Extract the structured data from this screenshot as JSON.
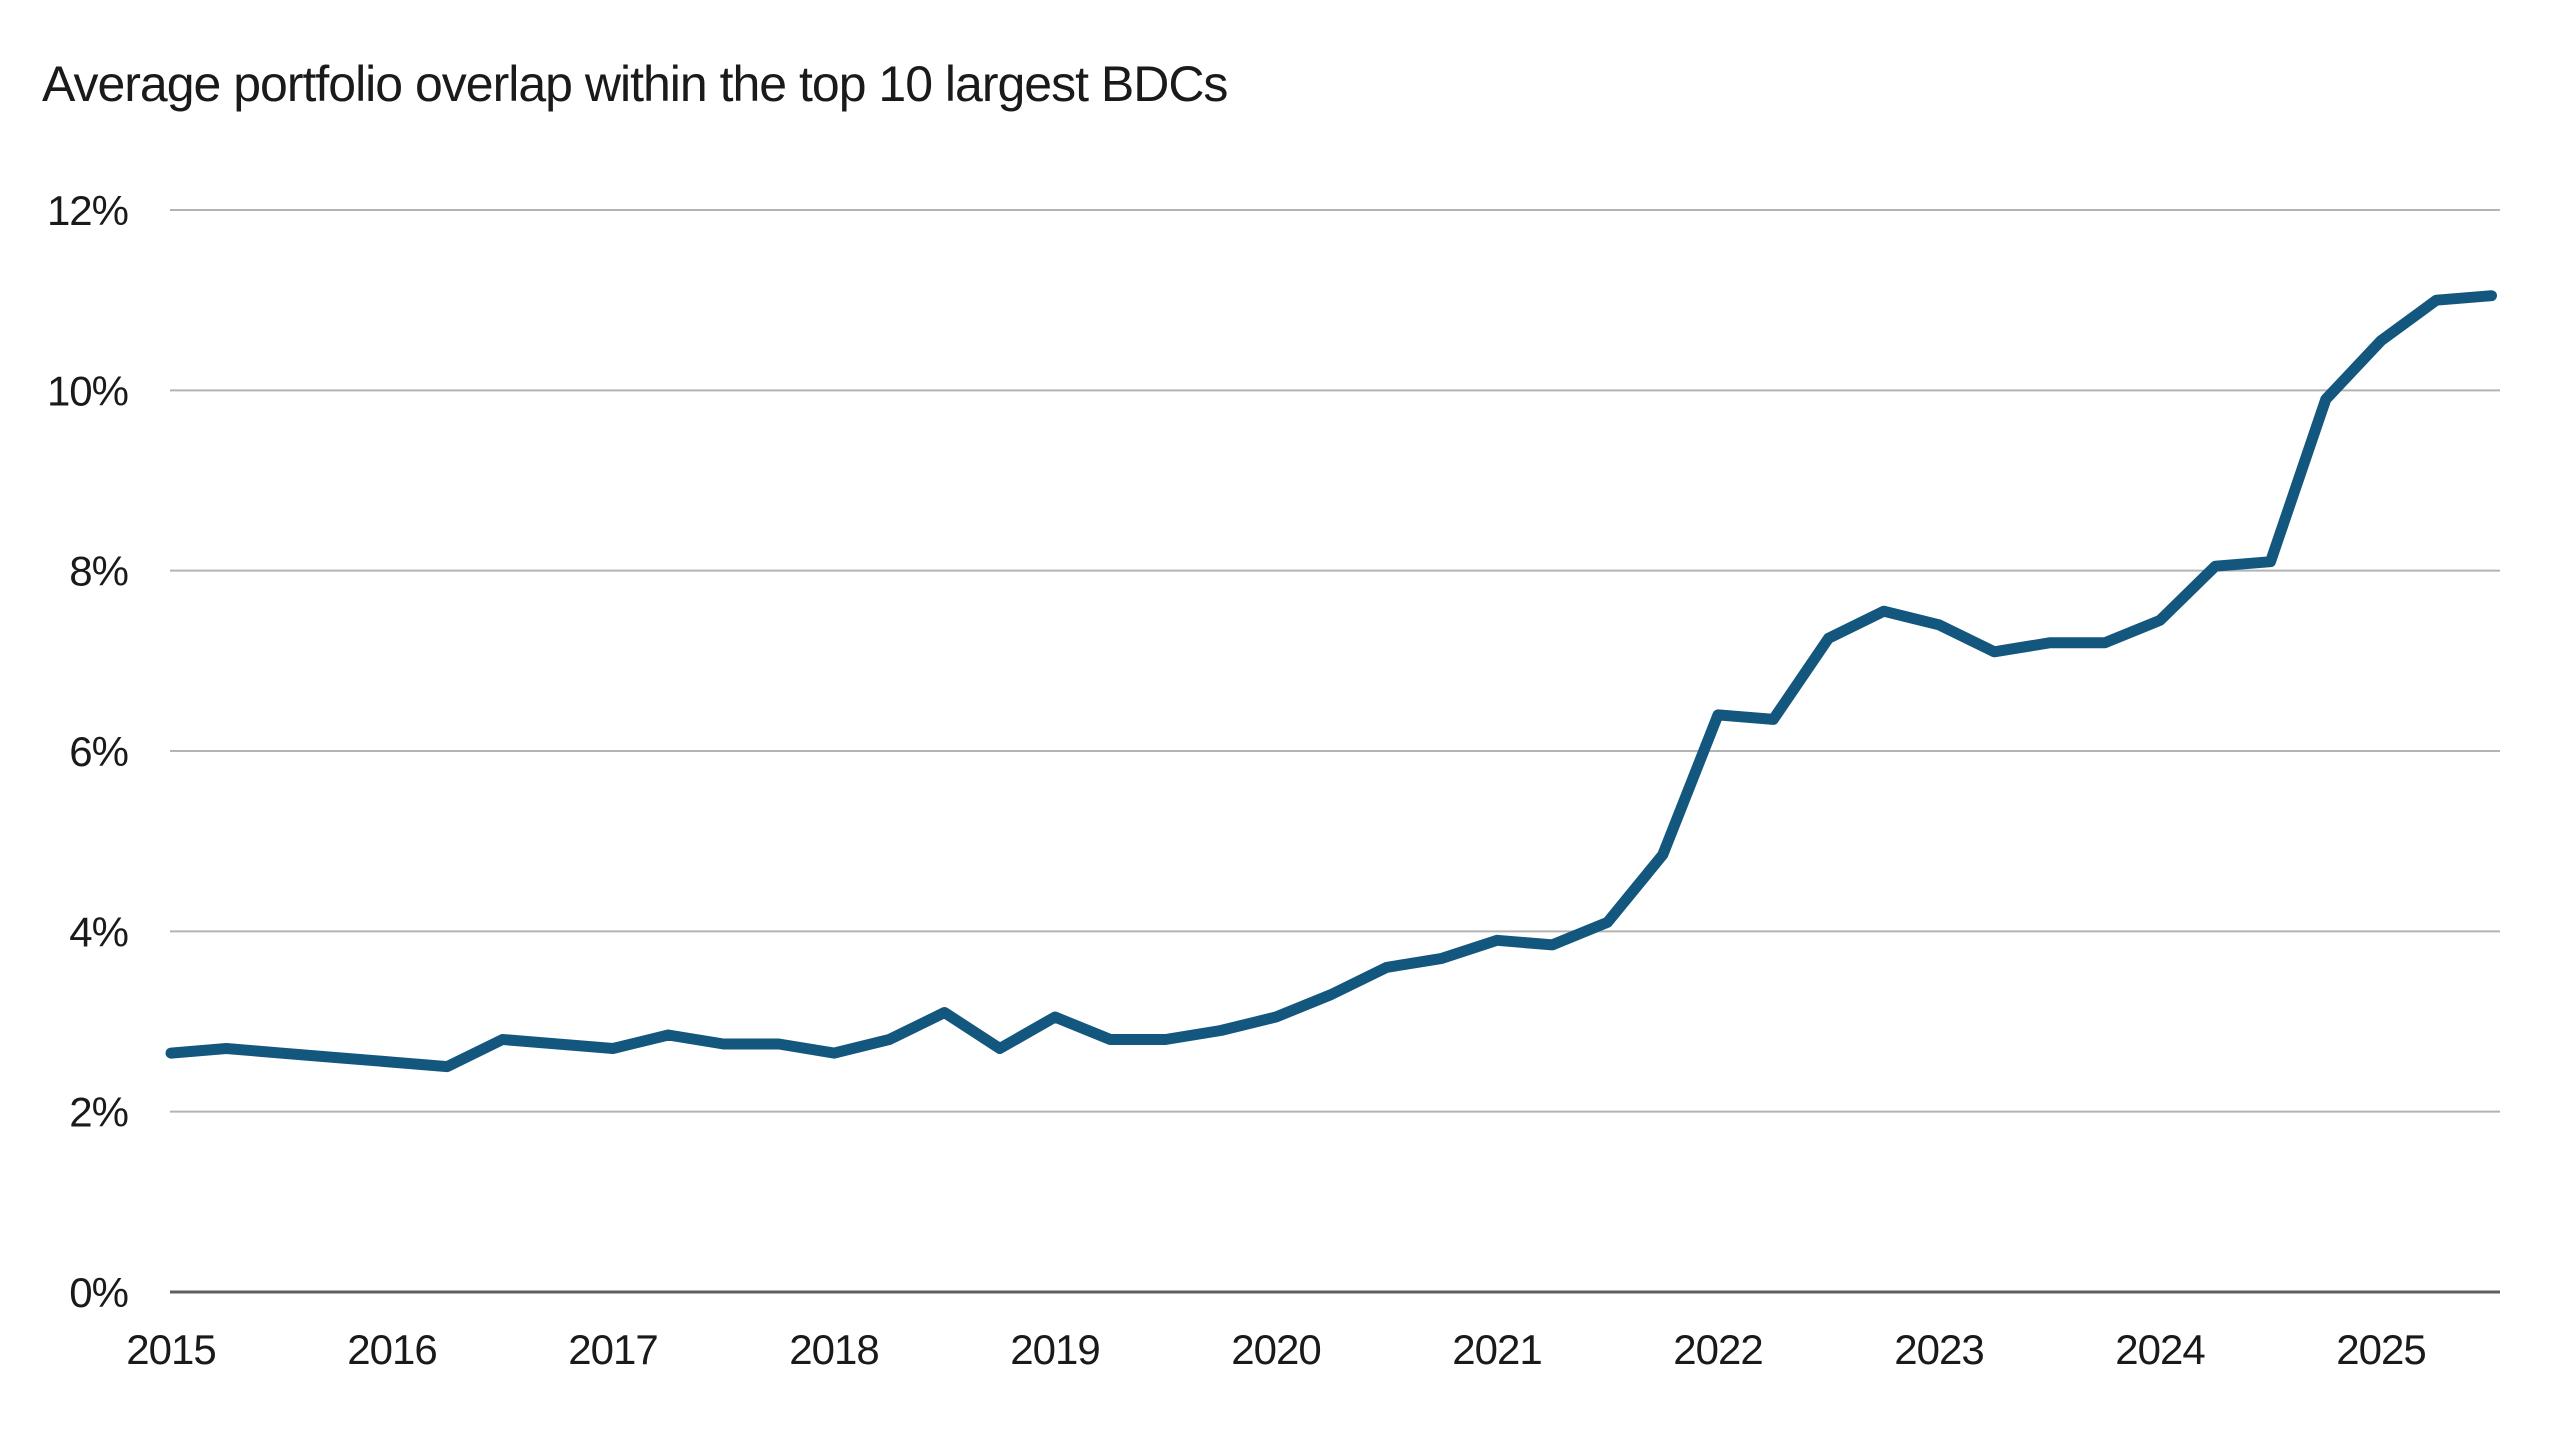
{
  "chart_data": {
    "type": "line",
    "title": "Average portfolio overlap within the top 10 largest BDCs",
    "xlabel": "",
    "ylabel": "",
    "ylim": [
      0,
      12
    ],
    "y_ticks": [
      0,
      2,
      4,
      6,
      8,
      10,
      12
    ],
    "y_tick_labels": [
      "0%",
      "2%",
      "4%",
      "6%",
      "8%",
      "10%",
      "12%"
    ],
    "x_tick_labels": [
      "2015",
      "2016",
      "2017",
      "2018",
      "2019",
      "2020",
      "2021",
      "2022",
      "2023",
      "2024",
      "2025"
    ],
    "grid": "horizontal-only",
    "legend_position": "none",
    "colors": {
      "line": "#14577e",
      "gridline": "#b3b3b3",
      "axis": "#5f5f5f",
      "text": "#1a1a1a",
      "background": "#ffffff"
    },
    "series": [
      {
        "name": "Average portfolio overlap within the top 10 largest BDCs",
        "frequency": "quarterly",
        "periods": [
          "2015 Q1",
          "2015 Q2",
          "2015 Q3",
          "2015 Q4",
          "2016 Q1",
          "2016 Q2",
          "2016 Q3",
          "2016 Q4",
          "2017 Q1",
          "2017 Q2",
          "2017 Q3",
          "2017 Q4",
          "2018 Q1",
          "2018 Q2",
          "2018 Q3",
          "2018 Q4",
          "2019 Q1",
          "2019 Q2",
          "2019 Q3",
          "2019 Q4",
          "2020 Q1",
          "2020 Q2",
          "2020 Q3",
          "2020 Q4",
          "2021 Q1",
          "2021 Q2",
          "2021 Q3",
          "2021 Q4",
          "2022 Q1",
          "2022 Q2",
          "2022 Q3",
          "2022 Q4",
          "2023 Q1",
          "2023 Q2",
          "2023 Q3",
          "2023 Q4",
          "2024 Q1",
          "2024 Q2",
          "2024 Q3",
          "2024 Q4",
          "2025 Q1",
          "2025 Q2",
          "2025 Q3"
        ],
        "values": [
          2.65,
          2.7,
          2.65,
          2.6,
          2.55,
          2.5,
          2.8,
          2.75,
          2.7,
          2.85,
          2.75,
          2.75,
          2.65,
          2.8,
          3.1,
          2.7,
          3.05,
          2.8,
          2.8,
          2.9,
          3.05,
          3.3,
          3.6,
          3.7,
          3.9,
          3.85,
          4.1,
          4.85,
          6.4,
          6.35,
          7.25,
          7.55,
          7.4,
          7.1,
          7.2,
          7.2,
          7.45,
          8.05,
          8.1,
          9.9,
          10.55,
          11.0,
          11.05
        ]
      }
    ]
  }
}
